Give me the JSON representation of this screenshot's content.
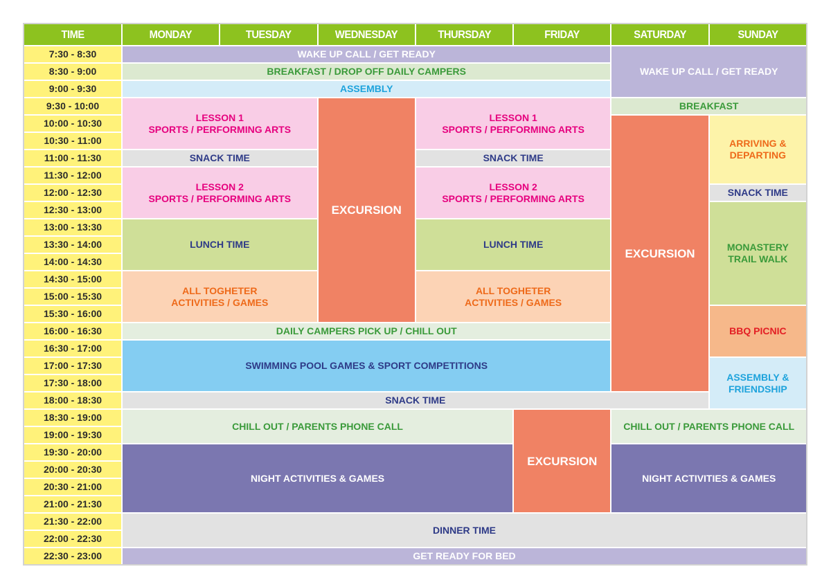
{
  "header": {
    "time_label": "TIME",
    "days": [
      "MONDAY",
      "TUESDAY",
      "WEDNESDAY",
      "THURSDAY",
      "FRIDAY",
      "SATURDAY",
      "SUNDAY"
    ]
  },
  "time_slots": [
    "7:30 - 8:30",
    "8:30 - 9:00",
    "9:00 - 9:30",
    "9:30 - 10:00",
    "10:00 - 10:30",
    "10:30 - 11:00",
    "11:00 - 11:30",
    "11:30 - 12:00",
    "12:00 - 12:30",
    "12:30 - 13:00",
    "13:00 - 13:30",
    "13:30 - 14:00",
    "14:00 - 14:30",
    "14:30 - 15:00",
    "15:00 - 15:30",
    "15:30 - 16:00",
    "16:00 - 16:30",
    "16:30 - 17:00",
    "17:00 - 17:30",
    "17:30 - 18:00",
    "18:00 - 18:30",
    "18:30 - 19:00",
    "19:00 - 19:30",
    "19:30 - 20:00",
    "20:00 - 20:30",
    "20:30 - 21:00",
    "21:00 - 21:30",
    "21:30 - 22:00",
    "22:00 - 22:30",
    "22:30 - 23:00"
  ],
  "styles": {
    "wake": {
      "bg": "#bbb5d9",
      "fg": "#ffffff"
    },
    "breakfast": {
      "bg": "#dce9d0",
      "fg": "#3a9a3a"
    },
    "assembly": {
      "bg": "#d4ecf8",
      "fg": "#1ea3dc"
    },
    "lesson": {
      "bg": "#f9cde6",
      "fg": "#e6007e"
    },
    "excursion": {
      "bg": "#f08264",
      "fg": "#ffffff"
    },
    "snack": {
      "bg": "#e2e2e2",
      "fg": "#2e3a87"
    },
    "lunch": {
      "bg": "#cfdf98",
      "fg": "#2e3a87"
    },
    "together": {
      "bg": "#fcd3b5",
      "fg": "#ee6a1a"
    },
    "chill": {
      "bg": "#e4eedf",
      "fg": "#3a9a3a"
    },
    "swim": {
      "bg": "#84cdf2",
      "fg": "#2e3a87"
    },
    "night": {
      "bg": "#7b77b0",
      "fg": "#ffffff"
    },
    "arriving": {
      "bg": "#fdf3a9",
      "fg": "#ee6a1a"
    },
    "monastery": {
      "bg": "#cfdf98",
      "fg": "#3a9a3a"
    },
    "bbq": {
      "bg": "#f6b88a",
      "fg": "#e31e24"
    }
  },
  "events": [
    {
      "label": "WAKE UP CALL / GET READY",
      "day_from": 1,
      "day_to": 5,
      "slot_from": 1,
      "slot_to": 1,
      "style": "wake"
    },
    {
      "label": "BREAKFAST / DROP OFF DAILY CAMPERS",
      "day_from": 1,
      "day_to": 5,
      "slot_from": 2,
      "slot_to": 2,
      "style": "breakfast"
    },
    {
      "label": "ASSEMBLY",
      "day_from": 1,
      "day_to": 5,
      "slot_from": 3,
      "slot_to": 3,
      "style": "assembly"
    },
    {
      "label": "WAKE UP CALL / GET READY",
      "day_from": 6,
      "day_to": 7,
      "slot_from": 1,
      "slot_to": 3,
      "style": "wake"
    },
    {
      "label": "LESSON 1\nSPORTS / PERFORMING ARTS",
      "day_from": 1,
      "day_to": 2,
      "slot_from": 4,
      "slot_to": 6,
      "style": "lesson"
    },
    {
      "label": "EXCURSION",
      "day_from": 3,
      "day_to": 3,
      "slot_from": 4,
      "slot_to": 16,
      "style": "excursion",
      "big": true
    },
    {
      "label": "LESSON 1\nSPORTS / PERFORMING ARTS",
      "day_from": 4,
      "day_to": 5,
      "slot_from": 4,
      "slot_to": 6,
      "style": "lesson"
    },
    {
      "label": "BREAKFAST",
      "day_from": 6,
      "day_to": 7,
      "slot_from": 4,
      "slot_to": 4,
      "style": "breakfast"
    },
    {
      "label": "SNACK TIME",
      "day_from": 1,
      "day_to": 2,
      "slot_from": 7,
      "slot_to": 7,
      "style": "snack"
    },
    {
      "label": "SNACK TIME",
      "day_from": 4,
      "day_to": 5,
      "slot_from": 7,
      "slot_to": 7,
      "style": "snack"
    },
    {
      "label": "LESSON 2\nSPORTS / PERFORMING ARTS",
      "day_from": 1,
      "day_to": 2,
      "slot_from": 8,
      "slot_to": 10,
      "style": "lesson"
    },
    {
      "label": "LESSON 2\nSPORTS / PERFORMING ARTS",
      "day_from": 4,
      "day_to": 5,
      "slot_from": 8,
      "slot_to": 10,
      "style": "lesson"
    },
    {
      "label": "LUNCH TIME",
      "day_from": 1,
      "day_to": 2,
      "slot_from": 11,
      "slot_to": 13,
      "style": "lunch"
    },
    {
      "label": "LUNCH TIME",
      "day_from": 4,
      "day_to": 5,
      "slot_from": 11,
      "slot_to": 13,
      "style": "lunch"
    },
    {
      "label": "ALL TOGHETER\nACTIVITIES / GAMES",
      "day_from": 1,
      "day_to": 2,
      "slot_from": 14,
      "slot_to": 16,
      "style": "together"
    },
    {
      "label": "ALL TOGHETER\nACTIVITIES / GAMES",
      "day_from": 4,
      "day_to": 5,
      "slot_from": 14,
      "slot_to": 16,
      "style": "together"
    },
    {
      "label": "DAILY CAMPERS PICK UP / CHILL OUT",
      "day_from": 1,
      "day_to": 5,
      "slot_from": 17,
      "slot_to": 17,
      "style": "chill"
    },
    {
      "label": "SWIMMING POOL GAMES & SPORT COMPETITIONS",
      "day_from": 1,
      "day_to": 5,
      "slot_from": 18,
      "slot_to": 20,
      "style": "swim"
    },
    {
      "label": "EXCURSION",
      "day_from": 6,
      "day_to": 6,
      "slot_from": 5,
      "slot_to": 20,
      "style": "excursion",
      "big": true
    },
    {
      "label": "ARRIVING &\nDEPARTING",
      "day_from": 7,
      "day_to": 7,
      "slot_from": 5,
      "slot_to": 8,
      "style": "arriving"
    },
    {
      "label": "SNACK TIME",
      "day_from": 7,
      "day_to": 7,
      "slot_from": 9,
      "slot_to": 9,
      "style": "snack"
    },
    {
      "label": "MONASTERY\nTRAIL WALK",
      "day_from": 7,
      "day_to": 7,
      "slot_from": 10,
      "slot_to": 15,
      "style": "monastery"
    },
    {
      "label": "BBQ PICNIC",
      "day_from": 7,
      "day_to": 7,
      "slot_from": 16,
      "slot_to": 18,
      "style": "bbq"
    },
    {
      "label": "ASSEMBLY &\nFRIENDSHIP",
      "day_from": 7,
      "day_to": 7,
      "slot_from": 19,
      "slot_to": 21,
      "style": "assembly"
    },
    {
      "label": "SNACK TIME",
      "day_from": 1,
      "day_to": 6,
      "slot_from": 21,
      "slot_to": 21,
      "style": "snack"
    },
    {
      "label": "CHILL OUT / PARENTS PHONE CALL",
      "day_from": 1,
      "day_to": 4,
      "slot_from": 22,
      "slot_to": 23,
      "style": "chill"
    },
    {
      "label": "EXCURSION",
      "day_from": 5,
      "day_to": 5,
      "slot_from": 22,
      "slot_to": 27,
      "style": "excursion",
      "big": true
    },
    {
      "label": "CHILL OUT / PARENTS PHONE CALL",
      "day_from": 6,
      "day_to": 7,
      "slot_from": 22,
      "slot_to": 23,
      "style": "chill"
    },
    {
      "label": "NIGHT ACTIVITIES & GAMES",
      "day_from": 1,
      "day_to": 4,
      "slot_from": 24,
      "slot_to": 27,
      "style": "night"
    },
    {
      "label": "NIGHT ACTIVITIES & GAMES",
      "day_from": 6,
      "day_to": 7,
      "slot_from": 24,
      "slot_to": 27,
      "style": "night"
    },
    {
      "label": "DINNER TIME",
      "day_from": 1,
      "day_to": 7,
      "slot_from": 28,
      "slot_to": 29,
      "style": "snack"
    },
    {
      "label": "GET READY FOR BED",
      "day_from": 1,
      "day_to": 7,
      "slot_from": 30,
      "slot_to": 30,
      "style": "wake"
    }
  ]
}
